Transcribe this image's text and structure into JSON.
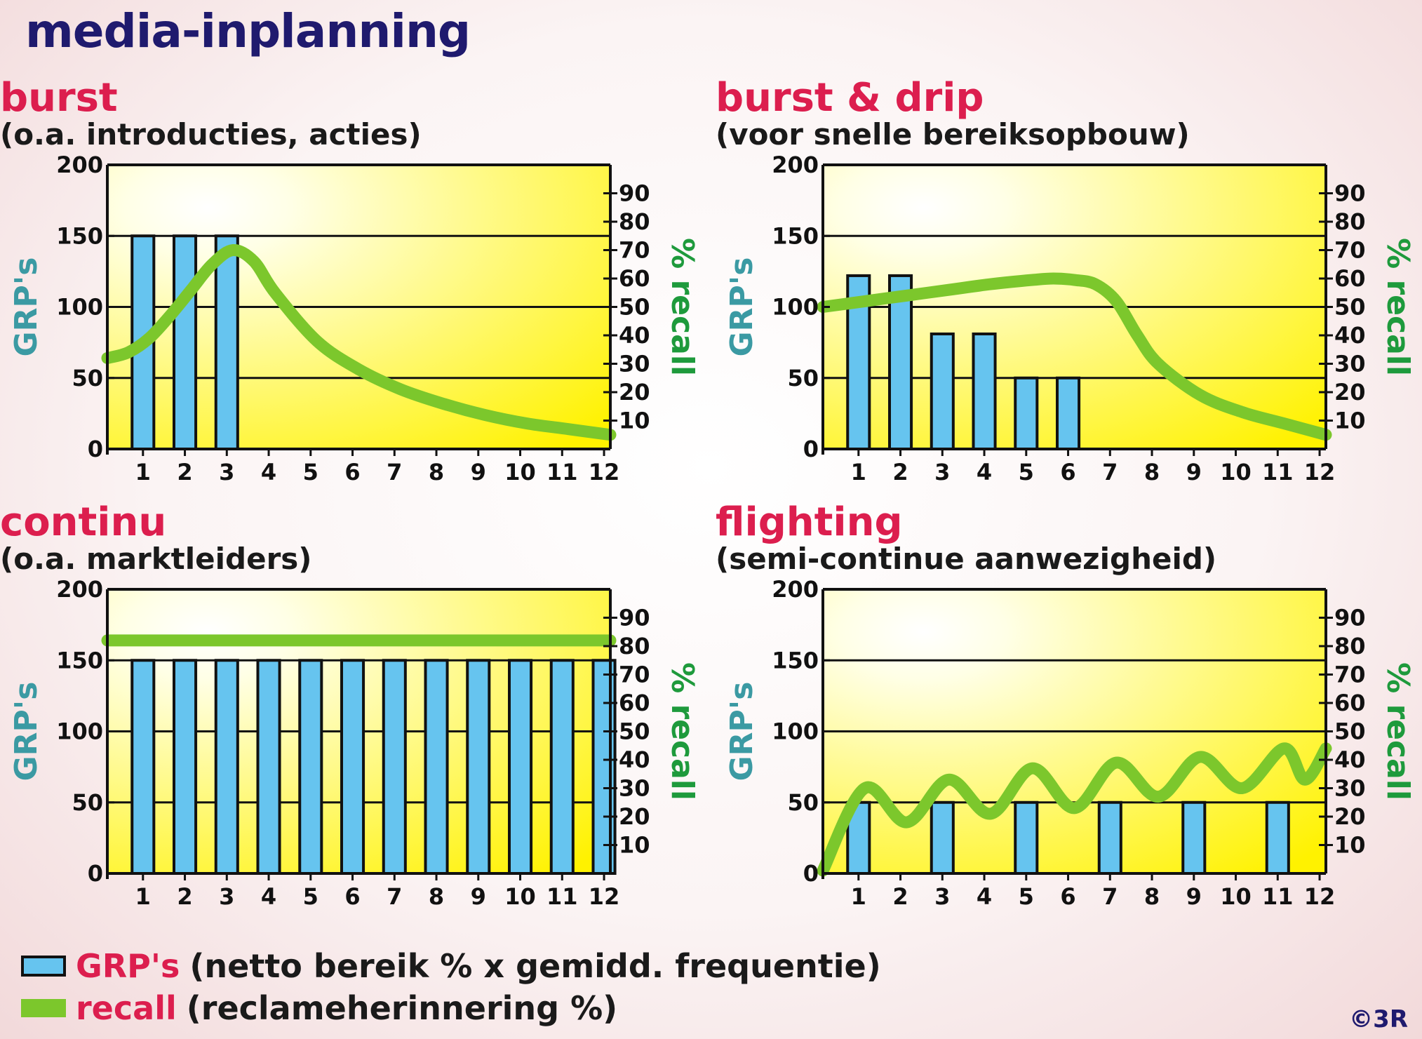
{
  "title": "media-inplanning",
  "colors": {
    "title": "#1f1a6e",
    "panel_title": "#dc1e4e",
    "bar_fill": "#66c4ef",
    "bar_stroke": "#111111",
    "recall_line": "#7cc72c",
    "left_axis_title": "#3b9aa3",
    "right_axis_title": "#1e9a3c",
    "plot_bg_light": "#ffffe6",
    "plot_bg_dark": "#fff200"
  },
  "chart_data": [
    {
      "type": "bar",
      "title": "burst",
      "subtitle": "(o.a. introducties, acties)",
      "categories": [
        "1",
        "2",
        "3",
        "4",
        "5",
        "6",
        "7",
        "8",
        "9",
        "10",
        "11",
        "12"
      ],
      "ylabel": "GRP's",
      "y2label": "% recall",
      "ylim": [
        0,
        200
      ],
      "yticks": [
        0,
        50,
        100,
        150,
        200
      ],
      "y2lim": [
        0,
        100
      ],
      "y2ticks": [
        10,
        20,
        30,
        40,
        50,
        60,
        70,
        80,
        90
      ],
      "series": [
        {
          "type": "bar",
          "axis": "left",
          "values": [
            150,
            150,
            150,
            0,
            0,
            0,
            0,
            0,
            0,
            0,
            0,
            0
          ]
        },
        {
          "type": "line",
          "axis": "right",
          "x": [
            0,
            0.5,
            1,
            1.5,
            2,
            2.5,
            3,
            3.5,
            4,
            5,
            6,
            7,
            8,
            9,
            10,
            11,
            12
          ],
          "values": [
            32,
            34,
            39,
            47,
            56,
            65,
            70,
            66,
            55,
            38,
            28,
            21,
            16,
            12,
            9,
            7,
            5
          ]
        }
      ]
    },
    {
      "type": "bar",
      "title": "burst & drip",
      "subtitle": "(voor snelle bereiksopbouw)",
      "categories": [
        "1",
        "2",
        "3",
        "4",
        "5",
        "6",
        "7",
        "8",
        "9",
        "10",
        "11",
        "12"
      ],
      "ylabel": "GRP's",
      "y2label": "% recall",
      "ylim": [
        0,
        200
      ],
      "yticks": [
        0,
        50,
        100,
        150,
        200
      ],
      "y2lim": [
        0,
        100
      ],
      "y2ticks": [
        10,
        20,
        30,
        40,
        50,
        60,
        70,
        80,
        90
      ],
      "series": [
        {
          "type": "bar",
          "axis": "left",
          "values": [
            122,
            122,
            81,
            81,
            50,
            50,
            0,
            0,
            0,
            0,
            0,
            0
          ]
        },
        {
          "type": "line",
          "axis": "right",
          "x": [
            0,
            1,
            2,
            3,
            4,
            5,
            5.5,
            6,
            6.5,
            7,
            7.5,
            8,
            9,
            10,
            11,
            12
          ],
          "values": [
            50,
            52,
            54,
            56,
            58,
            59.5,
            60,
            59.5,
            58,
            52,
            40,
            30,
            19,
            13,
            9,
            5
          ]
        }
      ]
    },
    {
      "type": "bar",
      "title": "continu",
      "subtitle": "(o.a. marktleiders)",
      "categories": [
        "1",
        "2",
        "3",
        "4",
        "5",
        "6",
        "7",
        "8",
        "9",
        "10",
        "11",
        "12"
      ],
      "ylabel": "GRP's",
      "y2label": "% recall",
      "ylim": [
        0,
        200
      ],
      "yticks": [
        0,
        50,
        100,
        150,
        200
      ],
      "y2lim": [
        0,
        100
      ],
      "y2ticks": [
        10,
        20,
        30,
        40,
        50,
        60,
        70,
        80,
        90
      ],
      "series": [
        {
          "type": "bar",
          "axis": "left",
          "values": [
            150,
            150,
            150,
            150,
            150,
            150,
            150,
            150,
            150,
            150,
            150,
            150
          ]
        },
        {
          "type": "line",
          "axis": "right",
          "x": [
            0,
            12
          ],
          "values": [
            82,
            82
          ]
        }
      ]
    },
    {
      "type": "bar",
      "title": "flighting",
      "subtitle": "(semi-continue aanwezigheid)",
      "categories": [
        "1",
        "2",
        "3",
        "4",
        "5",
        "6",
        "7",
        "8",
        "9",
        "10",
        "11",
        "12"
      ],
      "ylabel": "GRP's",
      "y2label": "% recall",
      "ylim": [
        0,
        200
      ],
      "yticks": [
        0,
        50,
        100,
        150,
        200
      ],
      "y2lim": [
        0,
        100
      ],
      "y2ticks": [
        10,
        20,
        30,
        40,
        50,
        60,
        70,
        80,
        90
      ],
      "series": [
        {
          "type": "bar",
          "axis": "left",
          "values": [
            50,
            0,
            50,
            0,
            50,
            0,
            50,
            0,
            50,
            0,
            50,
            0
          ]
        },
        {
          "type": "line",
          "axis": "right",
          "x": [
            0,
            1,
            2,
            3,
            4,
            5,
            6,
            7,
            8,
            9,
            10,
            11,
            11.5,
            12
          ],
          "values": [
            1,
            30,
            18,
            33,
            21,
            37,
            23,
            39,
            27,
            41,
            30,
            44,
            33,
            44
          ]
        }
      ]
    }
  ],
  "legend": [
    {
      "key": "GRP's",
      "text": "(netto bereik % x gemidd. frequentie)"
    },
    {
      "key": "recall",
      "text": "(reclameherinnering %)"
    }
  ],
  "copyright": "©3R"
}
